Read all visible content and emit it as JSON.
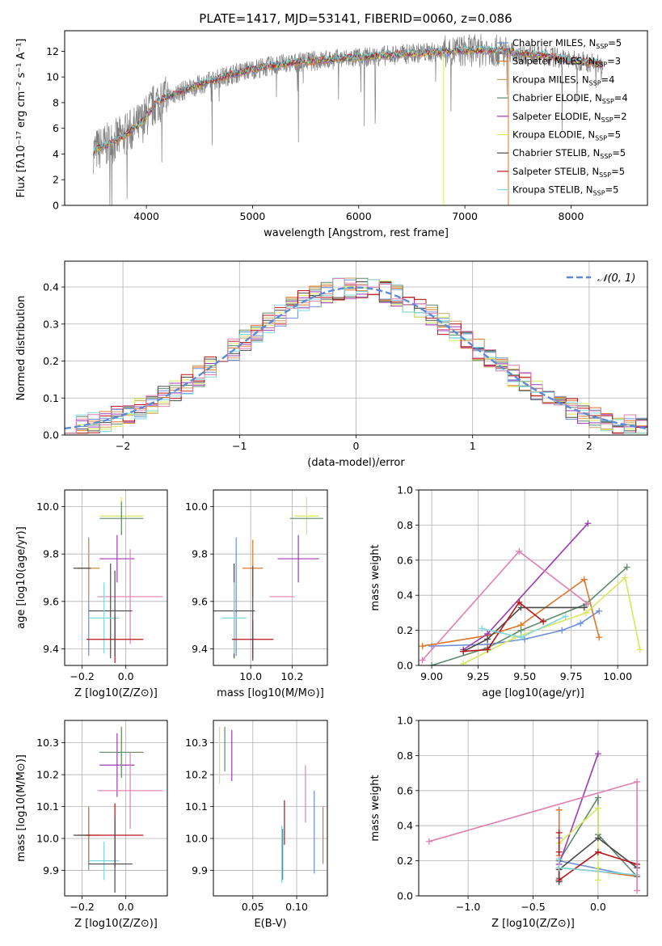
{
  "figure": {
    "title": "PLATE=1417, MJD=53141, FIBERID=0060, z=0.086"
  },
  "chart_data": [
    {
      "id": "spectrum",
      "type": "line",
      "xlabel": "wavelength [Angstrom, rest frame]",
      "ylabel": "Flux [fλ10⁻¹⁷ erg cm⁻² s⁻¹ A⁻¹]",
      "xlim": [
        3230,
        8720
      ],
      "ylim": [
        0,
        13.6
      ],
      "xticks": [
        4000,
        5000,
        6000,
        7000,
        8000
      ],
      "yticks": [
        0,
        2,
        4,
        6,
        8,
        10,
        12
      ],
      "grid": false,
      "legend_position": "top-right",
      "continuum": {
        "x": [
          3500,
          3700,
          3800,
          3950,
          4100,
          4300,
          4500,
          4800,
          5000,
          5200,
          5500,
          5800,
          6000,
          6300,
          6600,
          6900,
          7200,
          7500,
          7800,
          8000,
          8300
        ],
        "y": [
          4.2,
          5.0,
          5.5,
          6.4,
          8.1,
          8.8,
          9.4,
          10.2,
          10.6,
          10.9,
          11.2,
          11.4,
          11.5,
          11.7,
          11.9,
          12.0,
          12.1,
          11.9,
          11.6,
          11.3,
          11.0
        ]
      },
      "series": [
        {
          "name": "Chabrier MILES, N_SSP=5",
          "legend": "Chabrier MILES, N",
          "sub": "SSP",
          "suffix": "=5",
          "color": "#6b8fdc"
        },
        {
          "name": "Salpeter MILES, N_SSP=3",
          "legend": "Salpeter MILES, N",
          "sub": "SSP",
          "suffix": "=3",
          "color": "#e0762a"
        },
        {
          "name": "Kroupa MILES, N_SSP=4",
          "legend": "Kroupa MILES, N",
          "sub": "SSP",
          "suffix": "=4",
          "color": "#c9a25f"
        },
        {
          "name": "Chabrier ELODIE, N_SSP=4",
          "legend": "Chabrier ELODIE, N",
          "sub": "SSP",
          "suffix": "=4",
          "color": "#5f8a6d"
        },
        {
          "name": "Salpeter ELODIE, N_SSP=2",
          "legend": "Salpeter ELODIE, N",
          "sub": "SSP",
          "suffix": "=2",
          "color": "#9d3bb5"
        },
        {
          "name": "Kroupa ELODIE, N_SSP=5",
          "legend": "Kroupa ELODIE, N",
          "sub": "SSP",
          "suffix": "=5",
          "color": "#d8e75c"
        },
        {
          "name": "Chabrier STELIB, N_SSP=5",
          "legend": "Chabrier STELIB, N",
          "sub": "SSP",
          "suffix": "=5",
          "color": "#4a4a4a"
        },
        {
          "name": "Salpeter STELIB, N_SSP=5",
          "legend": "Salpeter STELIB, N",
          "sub": "SSP",
          "suffix": "=5",
          "color": "#b8141a"
        },
        {
          "name": "Kroupa STELIB, N_SSP=5",
          "legend": "Kroupa STELIB, N",
          "sub": "SSP",
          "suffix": "=5",
          "color": "#7fd8e0"
        }
      ]
    },
    {
      "id": "residuals",
      "type": "bar",
      "xlabel": "(data-model)/error",
      "ylabel": "Normed distribution",
      "xlim": [
        -2.5,
        2.5
      ],
      "ylim": [
        0,
        0.47
      ],
      "xticks": [
        -2,
        -1,
        0,
        1,
        2
      ],
      "yticks": [
        0.0,
        0.1,
        0.2,
        0.3,
        0.4
      ],
      "grid": true,
      "legend_position": "top-right",
      "bin_width": 0.1,
      "bin_start": -2.5,
      "reference_curve": {
        "name": "𝒩(0, 1)",
        "color": "#5b8ad6",
        "mean": 0,
        "sigma": 1
      },
      "series_colors": [
        "#6b8fdc",
        "#e0762a",
        "#c9a25f",
        "#5f8a6d",
        "#9d3bb5",
        "#d8e75c",
        "#4a4a4a",
        "#b8141a",
        "#7fd8e0",
        "#e07fb0"
      ]
    },
    {
      "id": "age-vs-z",
      "type": "scatter",
      "xlabel": "Z [log10(Z/Z⊙)]",
      "ylabel": "age  [log10(age/yr)]",
      "xlim": [
        -0.28,
        0.19
      ],
      "ylim": [
        9.33,
        10.07
      ],
      "xticks": [
        -0.2,
        0.0
      ],
      "yticks": [
        9.4,
        9.6,
        9.8,
        10.0
      ],
      "grid": true,
      "errorbars": [
        {
          "color": "#6b8fdc",
          "x": -0.17,
          "y": 9.62,
          "xerr": 0.0,
          "yerr": 0.25
        },
        {
          "color": "#e0762a",
          "x": -0.17,
          "y": 9.74,
          "xerr": 0.05,
          "yerr": 0.12
        },
        {
          "color": "#c9a25f",
          "x": -0.17,
          "y": 9.74,
          "xerr": 0.05,
          "yerr": 0.12
        },
        {
          "color": "#4a4a4a",
          "x": -0.2,
          "y": 9.74,
          "xerr": 0.04,
          "yerr": 0.0
        },
        {
          "color": "#9d3bb5",
          "x": -0.04,
          "y": 9.78,
          "xerr": 0.08,
          "yerr": 0.1
        },
        {
          "color": "#d8e75c",
          "x": -0.02,
          "y": 9.96,
          "xerr": 0.1,
          "yerr": 0.08
        },
        {
          "color": "#5f8a6d",
          "x": -0.02,
          "y": 9.95,
          "xerr": 0.1,
          "yerr": 0.07
        },
        {
          "color": "#e07fb0",
          "x": 0.02,
          "y": 9.62,
          "xerr": 0.15,
          "yerr": 0.2
        },
        {
          "color": "#4a4a4a",
          "x": -0.07,
          "y": 9.56,
          "xerr": 0.1,
          "yerr": 0.2
        },
        {
          "color": "#7fd8e0",
          "x": -0.1,
          "y": 9.53,
          "xerr": 0.07,
          "yerr": 0.15
        },
        {
          "color": "#b8141a",
          "x": -0.05,
          "y": 9.44,
          "xerr": 0.13,
          "yerr": 0.1
        },
        {
          "color": "#4a4a4a",
          "x": -0.05,
          "y": 9.55,
          "xerr": 0.0,
          "yerr": 0.18
        }
      ]
    },
    {
      "id": "age-vs-mass",
      "type": "scatter",
      "xlabel": "mass [log10(M/M⊙)]",
      "ylabel": "",
      "xlim": [
        9.82,
        10.37
      ],
      "ylim": [
        9.33,
        10.07
      ],
      "xticks": [
        10.0,
        10.2
      ],
      "yticks": [
        9.4,
        9.6,
        9.8,
        10.0
      ],
      "grid": true,
      "errorbars": [
        {
          "color": "#6b8fdc",
          "x": 9.93,
          "y": 9.62,
          "xerr": 0.0,
          "yerr": 0.25
        },
        {
          "color": "#e0762a",
          "x": 10.01,
          "y": 9.74,
          "xerr": 0.05,
          "yerr": 0.12
        },
        {
          "color": "#4a4a4a",
          "x": 9.92,
          "y": 9.56,
          "xerr": 0.1,
          "yerr": 0.2
        },
        {
          "color": "#7fd8e0",
          "x": 9.92,
          "y": 9.53,
          "xerr": 0.06,
          "yerr": 0.15
        },
        {
          "color": "#b8141a",
          "x": 10.01,
          "y": 9.44,
          "xerr": 0.1,
          "yerr": 0.08
        },
        {
          "color": "#9d3bb5",
          "x": 10.23,
          "y": 9.78,
          "xerr": 0.1,
          "yerr": 0.1
        },
        {
          "color": "#d8e75c",
          "x": 10.27,
          "y": 9.96,
          "xerr": 0.06,
          "yerr": 0.08
        },
        {
          "color": "#5f8a6d",
          "x": 10.27,
          "y": 9.95,
          "xerr": 0.08,
          "yerr": 0.0
        },
        {
          "color": "#e07fb0",
          "x": 10.15,
          "y": 9.62,
          "xerr": 0.06,
          "yerr": 0.0
        },
        {
          "color": "#4a4a4a",
          "x": 10.01,
          "y": 9.55,
          "xerr": 0.0,
          "yerr": 0.2
        }
      ]
    },
    {
      "id": "mass-weight-vs-age",
      "type": "line",
      "xlabel": "age  [log10(age/yr)]",
      "ylabel": "mass weight",
      "xlim": [
        8.93,
        10.16
      ],
      "ylim": [
        0,
        1.0
      ],
      "xticks": [
        9.0,
        9.25,
        9.5,
        9.75,
        10.0
      ],
      "yticks": [
        0.0,
        0.2,
        0.4,
        0.6,
        0.8,
        1.0
      ],
      "grid": true,
      "series": [
        {
          "color": "#6b8fdc",
          "x": [
            9.0,
            9.3,
            9.5,
            9.7,
            9.8,
            9.9
          ],
          "y": [
            0.11,
            0.12,
            0.15,
            0.2,
            0.24,
            0.31
          ]
        },
        {
          "color": "#e0762a",
          "x": [
            8.95,
            9.3,
            9.48,
            9.82,
            9.9
          ],
          "y": [
            0.11,
            0.17,
            0.23,
            0.49,
            0.16
          ]
        },
        {
          "color": "#5f8a6d",
          "x": [
            9.0,
            9.3,
            9.48,
            9.83,
            10.05
          ],
          "y": [
            0.0,
            0.1,
            0.2,
            0.35,
            0.56
          ]
        },
        {
          "color": "#9d3bb5",
          "x": [
            9.17,
            9.3,
            9.84
          ],
          "y": [
            0.09,
            0.18,
            0.81
          ]
        },
        {
          "color": "#d8e75c",
          "x": [
            9.17,
            9.45,
            9.83,
            10.04,
            10.12
          ],
          "y": [
            0.01,
            0.16,
            0.3,
            0.5,
            0.09
          ]
        },
        {
          "color": "#4a4a4a",
          "x": [
            9.17,
            9.3,
            9.48,
            9.82
          ],
          "y": [
            0.08,
            0.15,
            0.33,
            0.33
          ]
        },
        {
          "color": "#b8141a",
          "x": [
            9.17,
            9.3,
            9.47,
            9.6
          ],
          "y": [
            0.08,
            0.09,
            0.36,
            0.25
          ]
        },
        {
          "color": "#7fd8e0",
          "x": [
            9.27,
            9.48,
            9.72
          ],
          "y": [
            0.21,
            0.16,
            0.28
          ]
        },
        {
          "color": "#e07fb0",
          "x": [
            8.95,
            9.47,
            9.84
          ],
          "y": [
            0.03,
            0.65,
            0.35
          ]
        }
      ]
    },
    {
      "id": "mass-vs-z",
      "type": "scatter",
      "xlabel": "Z [log10(Z/Z⊙)]",
      "ylabel": "mass [log10(M/M⊙)]",
      "xlim": [
        -0.28,
        0.19
      ],
      "ylim": [
        9.82,
        10.37
      ],
      "xticks": [
        -0.2,
        0.0
      ],
      "yticks": [
        9.9,
        10.0,
        10.1,
        10.2,
        10.3
      ],
      "grid": true,
      "errorbars": [
        {
          "color": "#6b8fdc",
          "x": -0.17,
          "y": 10.0,
          "xerr": 0.0,
          "yerr": 0.1
        },
        {
          "color": "#e0762a",
          "x": -0.17,
          "y": 10.01,
          "xerr": 0.05,
          "yerr": 0.09
        },
        {
          "color": "#4a4a4a",
          "x": -0.2,
          "y": 10.01,
          "xerr": 0.04,
          "yerr": 0.0
        },
        {
          "color": "#9d3bb5",
          "x": -0.04,
          "y": 10.23,
          "xerr": 0.08,
          "yerr": 0.1
        },
        {
          "color": "#d8e75c",
          "x": -0.02,
          "y": 10.27,
          "xerr": 0.1,
          "yerr": 0.07
        },
        {
          "color": "#5f8a6d",
          "x": -0.02,
          "y": 10.27,
          "xerr": 0.1,
          "yerr": 0.08
        },
        {
          "color": "#e07fb0",
          "x": 0.02,
          "y": 10.15,
          "xerr": 0.15,
          "yerr": 0.12
        },
        {
          "color": "#7fd8e0",
          "x": -0.1,
          "y": 9.93,
          "xerr": 0.07,
          "yerr": 0.06
        },
        {
          "color": "#4a4a4a",
          "x": -0.07,
          "y": 9.92,
          "xerr": 0.1,
          "yerr": 0.0
        },
        {
          "color": "#b8141a",
          "x": -0.05,
          "y": 10.01,
          "xerr": 0.13,
          "yerr": 0.1
        },
        {
          "color": "#4a4a4a",
          "x": -0.05,
          "y": 9.95,
          "xerr": 0.0,
          "yerr": 0.12
        }
      ]
    },
    {
      "id": "mass-vs-ebv",
      "type": "scatter",
      "xlabel": "E(B-V)",
      "ylabel": "",
      "xlim": [
        0.005,
        0.135
      ],
      "ylim": [
        9.82,
        10.37
      ],
      "xticks": [
        0.05,
        0.1
      ],
      "yticks": [
        9.9,
        10.0,
        10.1,
        10.2,
        10.3
      ],
      "grid": true,
      "errorbars": [
        {
          "color": "#d8e75c",
          "x": 0.012,
          "y": 10.26,
          "xerr": 0.0,
          "yerr": 0.09
        },
        {
          "color": "#5f8a6d",
          "x": 0.018,
          "y": 10.28,
          "xerr": 0.0,
          "yerr": 0.07
        },
        {
          "color": "#9d3bb5",
          "x": 0.026,
          "y": 10.26,
          "xerr": 0.0,
          "yerr": 0.08
        },
        {
          "color": "#7fd8e0",
          "x": 0.083,
          "y": 9.95,
          "xerr": 0.0,
          "yerr": 0.09
        },
        {
          "color": "#5f8a6d",
          "x": 0.084,
          "y": 9.95,
          "xerr": 0.0,
          "yerr": 0.08
        },
        {
          "color": "#b8141a",
          "x": 0.086,
          "y": 10.05,
          "xerr": 0.0,
          "yerr": 0.07
        },
        {
          "color": "#e07fb0",
          "x": 0.11,
          "y": 10.14,
          "xerr": 0.0,
          "yerr": 0.09
        },
        {
          "color": "#6b8fdc",
          "x": 0.12,
          "y": 10.02,
          "xerr": 0.0,
          "yerr": 0.13
        },
        {
          "color": "#e0762a",
          "x": 0.13,
          "y": 10.01,
          "xerr": 0.0,
          "yerr": 0.09
        }
      ]
    },
    {
      "id": "mass-weight-vs-z",
      "type": "line",
      "xlabel": "Z [log10(Z/Z⊙)]",
      "ylabel": "mass weight",
      "xlim": [
        -1.38,
        0.38
      ],
      "ylim": [
        0,
        1.0
      ],
      "xticks": [
        -1.0,
        -0.5,
        0.0
      ],
      "yticks": [
        0.0,
        0.2,
        0.4,
        0.6,
        0.8,
        1.0
      ],
      "grid": true,
      "series": [
        {
          "color": "#6b8fdc",
          "x": [
            -0.3,
            -0.3,
            0.3
          ],
          "y": [
            0.33,
            0.2,
            0.11
          ]
        },
        {
          "color": "#e0762a",
          "x": [
            -0.3,
            -0.3,
            -0.3,
            0.0,
            0.3
          ],
          "y": [
            0.49,
            0.23,
            0.16,
            0.14,
            0.11
          ]
        },
        {
          "color": "#5f8a6d",
          "x": [
            -0.3,
            -0.3,
            0.0,
            0.0,
            0.3
          ],
          "y": [
            0.1,
            0.2,
            0.56,
            0.35,
            0.11
          ]
        },
        {
          "color": "#9d3bb5",
          "x": [
            -0.3,
            -0.3,
            0.0
          ],
          "y": [
            0.09,
            0.18,
            0.81
          ]
        },
        {
          "color": "#d8e75c",
          "x": [
            -0.3,
            0.0,
            0.0,
            0.0
          ],
          "y": [
            0.3,
            0.5,
            0.09,
            0.16
          ]
        },
        {
          "color": "#4a4a4a",
          "x": [
            -0.3,
            -0.3,
            0.0,
            0.3
          ],
          "y": [
            0.08,
            0.15,
            0.33,
            0.16
          ]
        },
        {
          "color": "#b8141a",
          "x": [
            -0.3,
            -0.3,
            -0.3,
            0.0,
            0.3
          ],
          "y": [
            0.36,
            0.25,
            0.09,
            0.25,
            0.18
          ]
        },
        {
          "color": "#7fd8e0",
          "x": [
            -0.3,
            -0.3,
            0.3
          ],
          "y": [
            0.21,
            0.16,
            0.12
          ]
        },
        {
          "color": "#e07fb0",
          "x": [
            -1.3,
            0.3,
            0.3
          ],
          "y": [
            0.31,
            0.65,
            0.03
          ]
        }
      ]
    }
  ]
}
